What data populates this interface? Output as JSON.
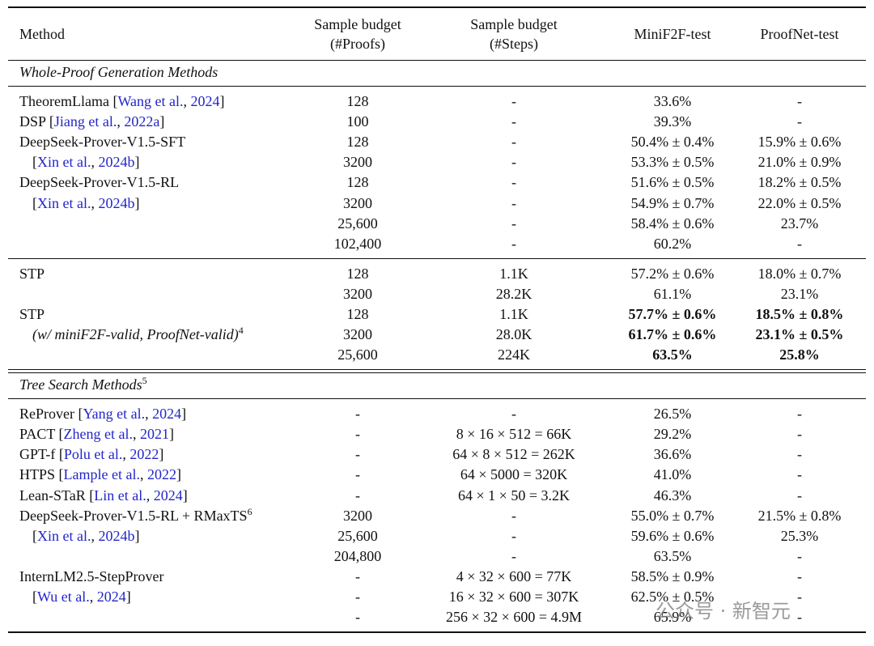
{
  "header": {
    "method": [
      "Method"
    ],
    "proofs": [
      "Sample budget",
      "(#Proofs)"
    ],
    "steps": [
      "Sample budget",
      "(#Steps)"
    ],
    "minif2f": [
      "MiniF2F-test"
    ],
    "proofnet": [
      "ProofNet-test"
    ]
  },
  "sections": [
    {
      "title": [
        {
          "t": "Whole-Proof Generation Methods",
          "s": "italic"
        }
      ],
      "rows": [
        {
          "method": [
            {
              "t": "TheoremLlama [",
              "s": "plain"
            },
            {
              "t": "Wang et al.",
              "s": "link"
            },
            {
              "t": ", ",
              "s": "plain"
            },
            {
              "t": "2024",
              "s": "link"
            },
            {
              "t": "]",
              "s": "plain"
            }
          ],
          "proofs": "128",
          "steps": "-",
          "minif2f": "33.6%",
          "proofnet": "-"
        },
        {
          "method": [
            {
              "t": "DSP [",
              "s": "plain"
            },
            {
              "t": "Jiang et al.",
              "s": "link"
            },
            {
              "t": ", ",
              "s": "plain"
            },
            {
              "t": "2022a",
              "s": "link"
            },
            {
              "t": "]",
              "s": "plain"
            }
          ],
          "proofs": "100",
          "steps": "-",
          "minif2f": "39.3%",
          "proofnet": "-"
        },
        {
          "method": [
            {
              "t": "DeepSeek-Prover-V1.5-SFT",
              "s": "plain"
            }
          ],
          "proofs": "128",
          "steps": "-",
          "minif2f": "50.4% ± 0.4%",
          "proofnet": "15.9% ± 0.6%"
        },
        {
          "indent": true,
          "method": [
            {
              "t": "[",
              "s": "plain"
            },
            {
              "t": "Xin et al.",
              "s": "link"
            },
            {
              "t": ", ",
              "s": "plain"
            },
            {
              "t": "2024b",
              "s": "link"
            },
            {
              "t": "]",
              "s": "plain"
            }
          ],
          "proofs": "3200",
          "steps": "-",
          "minif2f": "53.3% ± 0.5%",
          "proofnet": "21.0% ± 0.9%"
        },
        {
          "method": [
            {
              "t": "DeepSeek-Prover-V1.5-RL",
              "s": "plain"
            }
          ],
          "proofs": "128",
          "steps": "-",
          "minif2f": "51.6% ± 0.5%",
          "proofnet": "18.2% ± 0.5%"
        },
        {
          "indent": true,
          "method": [
            {
              "t": "[",
              "s": "plain"
            },
            {
              "t": "Xin et al.",
              "s": "link"
            },
            {
              "t": ", ",
              "s": "plain"
            },
            {
              "t": "2024b",
              "s": "link"
            },
            {
              "t": "]",
              "s": "plain"
            }
          ],
          "proofs": "3200",
          "steps": "-",
          "minif2f": "54.9% ± 0.7%",
          "proofnet": "22.0% ± 0.5%"
        },
        {
          "method": [],
          "proofs": "25,600",
          "steps": "-",
          "minif2f": "58.4% ± 0.6%",
          "proofnet": "23.7%"
        },
        {
          "method": [],
          "proofs": "102,400",
          "steps": "-",
          "minif2f": "60.2%",
          "proofnet": "-"
        }
      ]
    },
    {
      "rows": [
        {
          "method": [
            {
              "t": "STP",
              "s": "plain"
            }
          ],
          "proofs": "128",
          "steps": "1.1K",
          "minif2f": "57.2% ± 0.6%",
          "proofnet": "18.0% ± 0.7%"
        },
        {
          "method": [],
          "proofs": "3200",
          "steps": "28.2K",
          "minif2f": "61.1%",
          "proofnet": "23.1%"
        },
        {
          "method": [
            {
              "t": "STP",
              "s": "plain"
            }
          ],
          "proofs": "128",
          "steps": "1.1K",
          "minif2f": "57.7% ± 0.6%",
          "proofnet": "18.5% ± 0.8%",
          "bold": true
        },
        {
          "indent": true,
          "method": [
            {
              "t": "(w/ miniF2F-valid, ProofNet-valid)",
              "s": "italic"
            },
            {
              "t": "4",
              "s": "sup"
            }
          ],
          "proofs": "3200",
          "steps": "28.0K",
          "minif2f": "61.7% ± 0.6%",
          "proofnet": "23.1% ± 0.5%",
          "bold": true
        },
        {
          "method": [],
          "proofs": "25,600",
          "steps": "224K",
          "minif2f": "63.5%",
          "proofnet": "25.8%",
          "bold": true
        }
      ]
    },
    {
      "double_rule_before": true,
      "title": [
        {
          "t": "Tree Search Methods",
          "s": "italic"
        },
        {
          "t": "5",
          "s": "sup"
        }
      ],
      "rows": [
        {
          "method": [
            {
              "t": "ReProver [",
              "s": "plain"
            },
            {
              "t": "Yang et al.",
              "s": "link"
            },
            {
              "t": ", ",
              "s": "plain"
            },
            {
              "t": "2024",
              "s": "link"
            },
            {
              "t": "]",
              "s": "plain"
            }
          ],
          "proofs": "-",
          "steps": "-",
          "minif2f": "26.5%",
          "proofnet": "-"
        },
        {
          "method": [
            {
              "t": "PACT [",
              "s": "plain"
            },
            {
              "t": "Zheng et al.",
              "s": "link"
            },
            {
              "t": ", ",
              "s": "plain"
            },
            {
              "t": "2021",
              "s": "link"
            },
            {
              "t": "]",
              "s": "plain"
            }
          ],
          "proofs": "-",
          "steps": "8 × 16 × 512 = 66K",
          "minif2f": "29.2%",
          "proofnet": "-"
        },
        {
          "method": [
            {
              "t": "GPT-f [",
              "s": "plain"
            },
            {
              "t": "Polu et al.",
              "s": "link"
            },
            {
              "t": ", ",
              "s": "plain"
            },
            {
              "t": "2022",
              "s": "link"
            },
            {
              "t": "]",
              "s": "plain"
            }
          ],
          "proofs": "-",
          "steps": "64 × 8 × 512 = 262K",
          "minif2f": "36.6%",
          "proofnet": "-"
        },
        {
          "method": [
            {
              "t": "HTPS [",
              "s": "plain"
            },
            {
              "t": "Lample et al.",
              "s": "link"
            },
            {
              "t": ", ",
              "s": "plain"
            },
            {
              "t": "2022",
              "s": "link"
            },
            {
              "t": "]",
              "s": "plain"
            }
          ],
          "proofs": "-",
          "steps": "64 × 5000 = 320K",
          "minif2f": "41.0%",
          "proofnet": "-"
        },
        {
          "method": [
            {
              "t": "Lean-STaR [",
              "s": "plain"
            },
            {
              "t": "Lin et al.",
              "s": "link"
            },
            {
              "t": ", ",
              "s": "plain"
            },
            {
              "t": "2024",
              "s": "link"
            },
            {
              "t": "]",
              "s": "plain"
            }
          ],
          "proofs": "-",
          "steps": "64 × 1 × 50 = 3.2K",
          "minif2f": "46.3%",
          "proofnet": "-"
        },
        {
          "method": [
            {
              "t": "DeepSeek-Prover-V1.5-RL + RMaxTS",
              "s": "plain"
            },
            {
              "t": "6",
              "s": "sup"
            }
          ],
          "proofs": "3200",
          "steps": "-",
          "minif2f": "55.0% ± 0.7%",
          "proofnet": "21.5% ± 0.8%"
        },
        {
          "indent": true,
          "method": [
            {
              "t": "[",
              "s": "plain"
            },
            {
              "t": "Xin et al.",
              "s": "link"
            },
            {
              "t": ", ",
              "s": "plain"
            },
            {
              "t": "2024b",
              "s": "link"
            },
            {
              "t": "]",
              "s": "plain"
            }
          ],
          "proofs": "25,600",
          "steps": "-",
          "minif2f": "59.6% ± 0.6%",
          "proofnet": "25.3%"
        },
        {
          "method": [],
          "proofs": "204,800",
          "steps": "-",
          "minif2f": "63.5%",
          "proofnet": "-"
        },
        {
          "method": [
            {
              "t": "InternLM2.5-StepProver",
              "s": "plain"
            }
          ],
          "proofs": "-",
          "steps": "4 × 32 × 600 = 77K",
          "minif2f": "58.5% ± 0.9%",
          "proofnet": "-"
        },
        {
          "indent": true,
          "method": [
            {
              "t": "[",
              "s": "plain"
            },
            {
              "t": "Wu et al.",
              "s": "link"
            },
            {
              "t": ", ",
              "s": "plain"
            },
            {
              "t": "2024",
              "s": "link"
            },
            {
              "t": "]",
              "s": "plain"
            }
          ],
          "proofs": "-",
          "steps": "16 × 32 × 600 = 307K",
          "minif2f": "62.5% ± 0.5%",
          "proofnet": "-"
        },
        {
          "method": [],
          "proofs": "-",
          "steps": "256 × 32 × 600 = 4.9M",
          "minif2f": "65.9%",
          "proofnet": "-"
        }
      ]
    }
  ],
  "watermark": "公众号 · 新智元"
}
